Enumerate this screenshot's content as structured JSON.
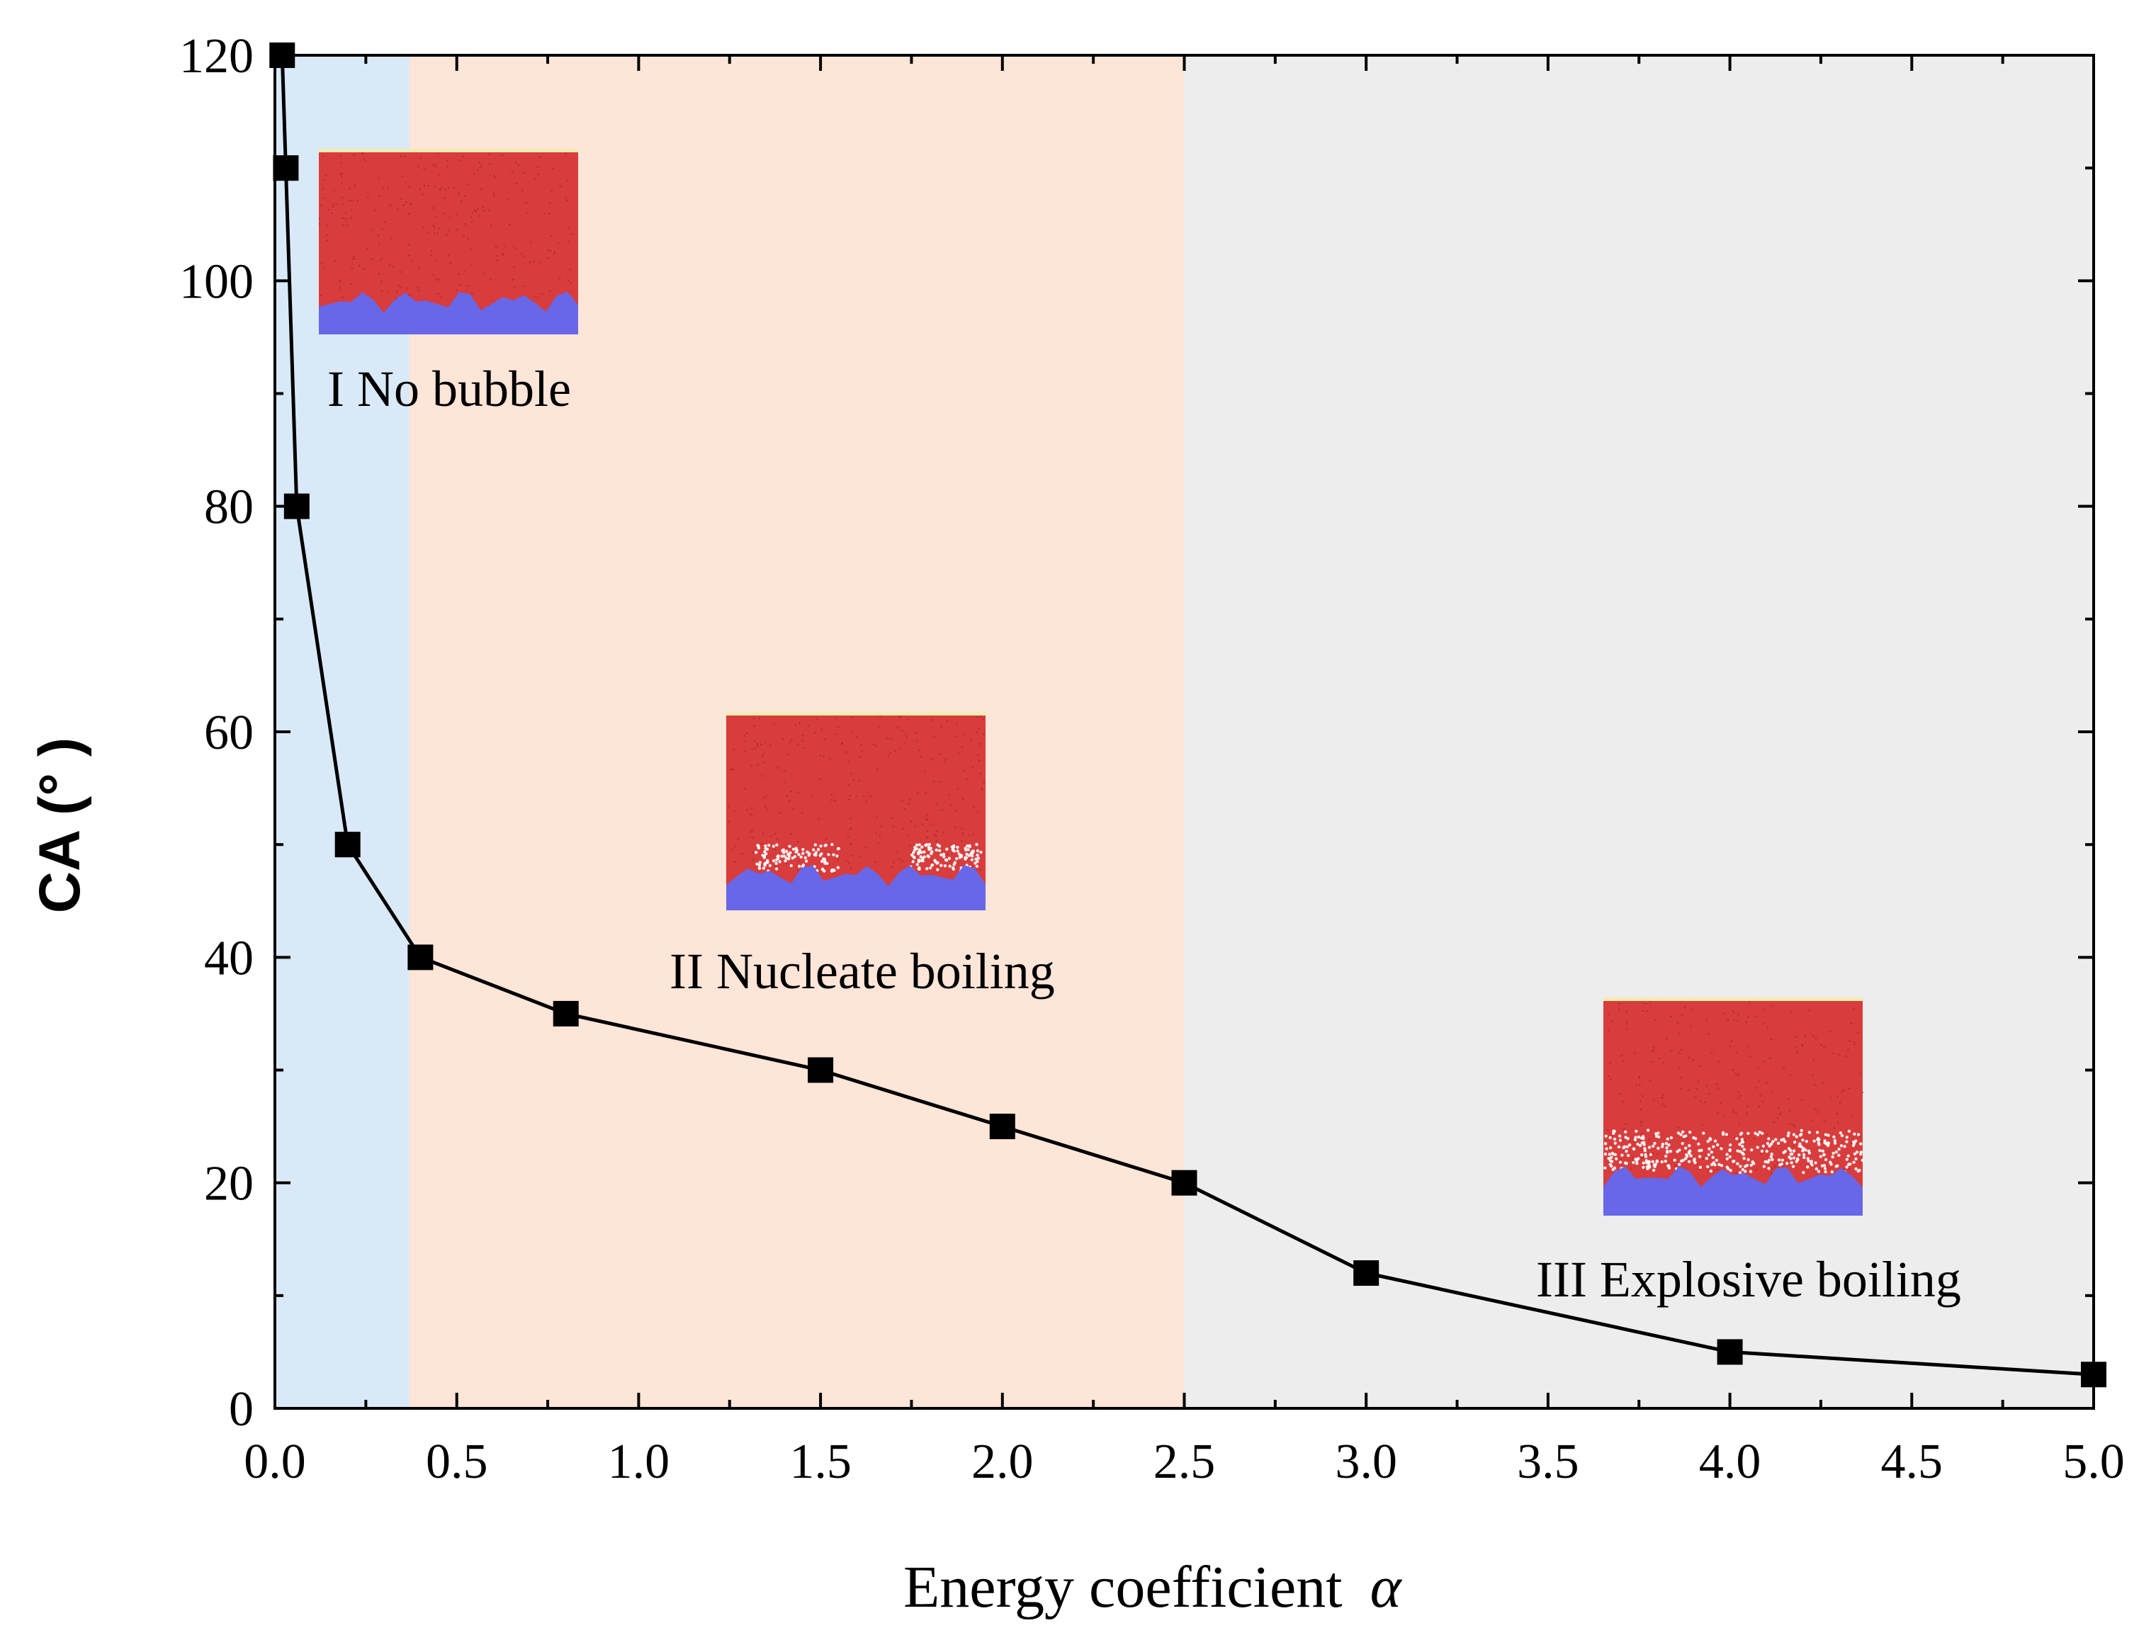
{
  "chart_data": {
    "type": "line",
    "title": "",
    "xlabel": "Energy coefficient",
    "xlabel_symbol": "α",
    "ylabel": "CA (° )",
    "xlim": [
      0,
      5
    ],
    "ylim": [
      0,
      120
    ],
    "x_ticks": [
      "0.0",
      "0.5",
      "1.0",
      "1.5",
      "2.0",
      "2.5",
      "3.0",
      "3.5",
      "4.0",
      "4.5",
      "5.0"
    ],
    "y_ticks": [
      "0",
      "20",
      "40",
      "60",
      "80",
      "100",
      "120"
    ],
    "grid": false,
    "legend": "none",
    "series": [
      {
        "name": "CA",
        "marker": "square",
        "color": "#000000",
        "x": [
          0.02,
          0.03,
          0.06,
          0.2,
          0.4,
          0.8,
          1.5,
          2.0,
          2.5,
          3.0,
          4.0,
          5.0
        ],
        "y": [
          120,
          110,
          80,
          50,
          40,
          35,
          30,
          25,
          20,
          12,
          5,
          3
        ]
      }
    ],
    "regions": [
      {
        "name": "I No bubble",
        "x_start": 0,
        "x_end": 0.37,
        "color": "#dae9f7"
      },
      {
        "name": "II Nucleate boiling",
        "x_start": 0.37,
        "x_end": 2.5,
        "color": "#fde5d8"
      },
      {
        "name": "III Explosive boiling",
        "x_start": 2.5,
        "x_end": 5.0,
        "color": "#ededed"
      }
    ],
    "annotations": [
      {
        "text": "I No bubble",
        "region": "I",
        "bubble": "none"
      },
      {
        "text": "II Nucleate boiling",
        "region": "II",
        "bubble": "nucleate"
      },
      {
        "text": "III Explosive boiling",
        "region": "III",
        "bubble": "explosive"
      }
    ]
  },
  "colors": {
    "liquid": "#d83c3c",
    "solid": "#6767e8",
    "vapor": "#ffffff",
    "line": "#000000"
  }
}
